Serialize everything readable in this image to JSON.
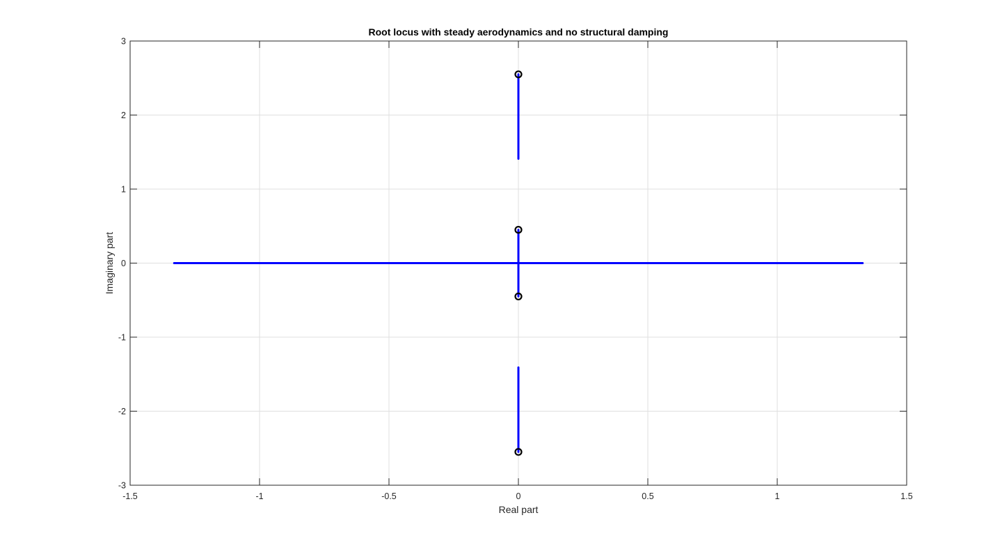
{
  "chart_data": {
    "type": "scatter",
    "title": "Root locus with steady aerodynamics and no structural damping",
    "xlabel": "Real part",
    "ylabel": "Imaginary part",
    "xlim": [
      -1.5,
      1.5
    ],
    "ylim": [
      -3,
      3
    ],
    "xticks": [
      "-1.5",
      "-1",
      "-0.5",
      "0",
      "0.5",
      "1",
      "1.5"
    ],
    "yticks": [
      "-3",
      "-2",
      "-1",
      "0",
      "1",
      "2",
      "3"
    ],
    "grid": true,
    "box": true,
    "colors": {
      "locus": "#0000ff",
      "marker": "#000000",
      "grid": "#dfdfdf",
      "axes": "#262626"
    },
    "series": [
      {
        "kind": "line",
        "points": [
          [
            -1.33,
            0
          ],
          [
            1.33,
            0
          ]
        ]
      },
      {
        "kind": "line",
        "points": [
          [
            0,
            0.45
          ],
          [
            0,
            -0.45
          ]
        ]
      },
      {
        "kind": "line",
        "points": [
          [
            0,
            2.55
          ],
          [
            0,
            1.41
          ]
        ]
      },
      {
        "kind": "line",
        "points": [
          [
            0,
            -2.55
          ],
          [
            0,
            -1.41
          ]
        ]
      },
      {
        "kind": "markers",
        "marker": "circle",
        "points": [
          [
            0,
            2.55
          ],
          [
            0,
            0.45
          ],
          [
            0,
            -0.45
          ],
          [
            0,
            -2.55
          ]
        ]
      }
    ]
  }
}
